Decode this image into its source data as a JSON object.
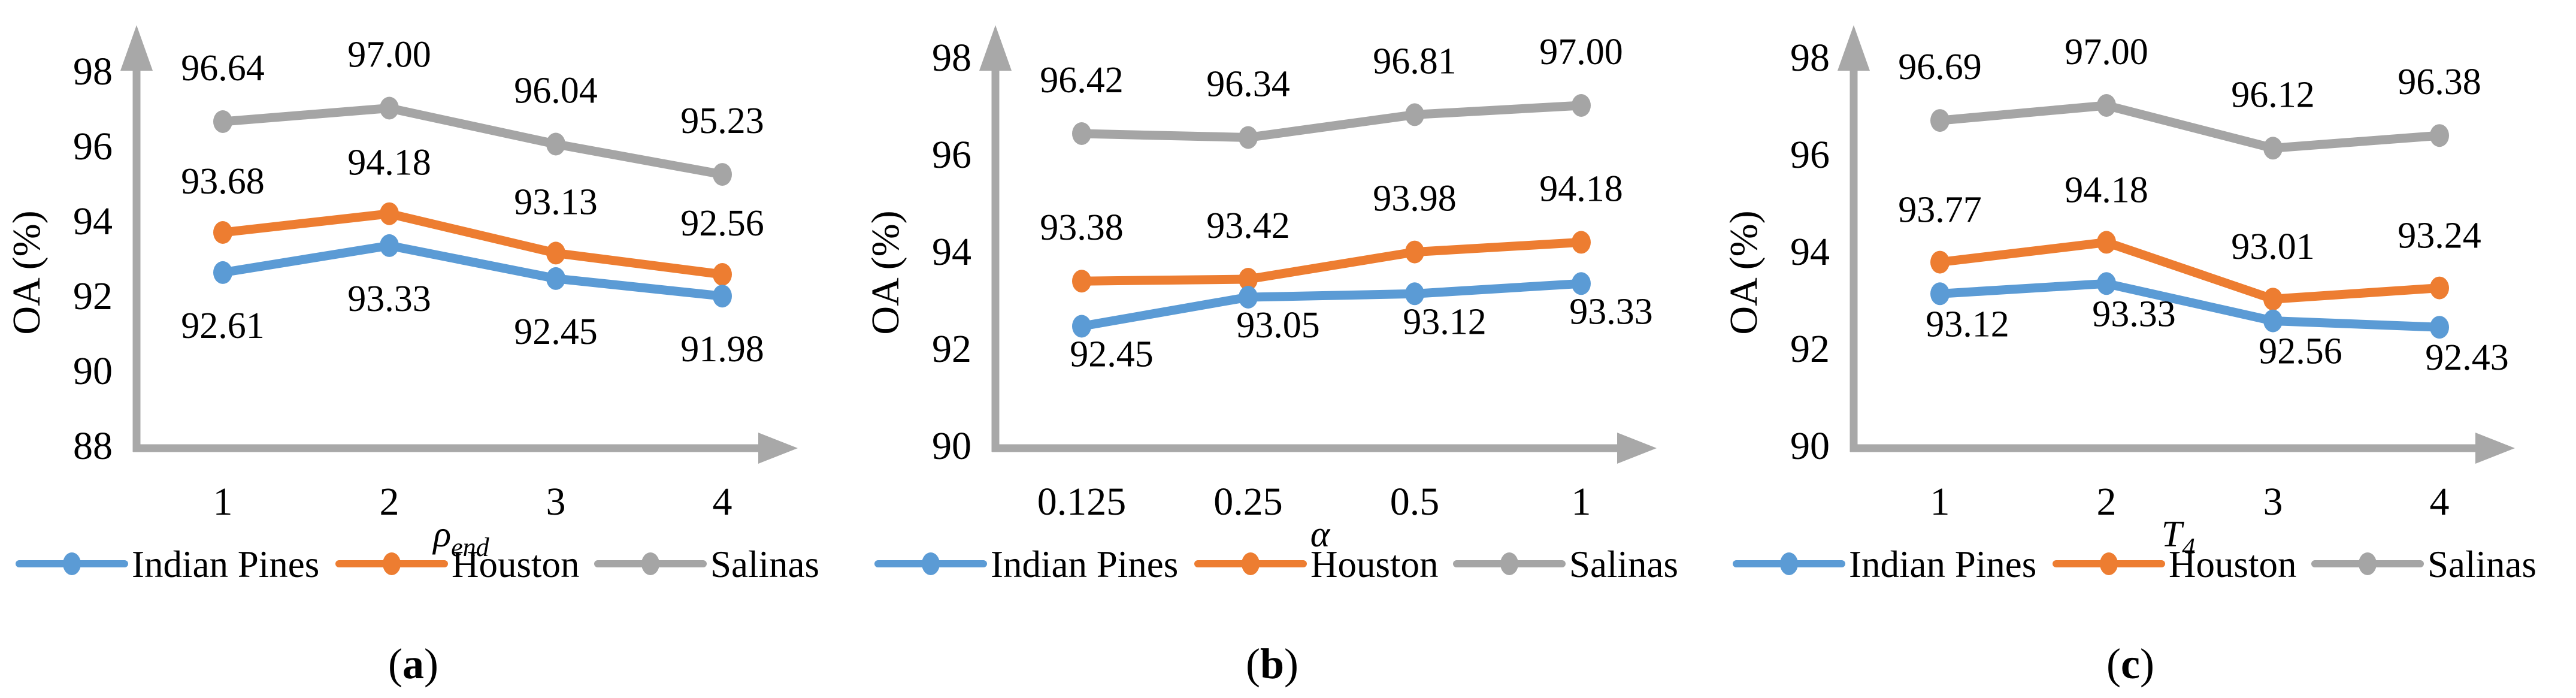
{
  "figure": {
    "colors": {
      "indian_pines": "#5B9BD5",
      "houston": "#ED7D31",
      "salinas": "#A5A5A5",
      "axis": "#A8A8A8",
      "text": "#000000"
    },
    "legend_labels": [
      "Indian Pines",
      "Houston",
      "Salinas"
    ]
  },
  "chart_data": [
    {
      "type": "line",
      "caption": {
        "open": "(",
        "letter": "a",
        "close": ")"
      },
      "ylabel": "OA (%)",
      "xlabel": {
        "main": "ρ",
        "sub": "end"
      },
      "ylim": [
        88,
        98
      ],
      "yticks": [
        "88",
        "90",
        "92",
        "94",
        "96",
        "98"
      ],
      "categories": [
        "1",
        "2",
        "3",
        "4"
      ],
      "grid": false,
      "legend_position": "bottom",
      "series": [
        {
          "name": "Indian Pines",
          "color_key": "indian_pines",
          "values": [
            92.61,
            93.33,
            92.45,
            91.98
          ],
          "labels": [
            "92.61",
            "93.33",
            "92.45",
            "91.98"
          ],
          "label_side": "below",
          "label_dx": 0,
          "label_dy": 88
        },
        {
          "name": "Houston",
          "color_key": "houston",
          "values": [
            93.68,
            94.18,
            93.13,
            92.56
          ],
          "labels": [
            "93.68",
            "94.18",
            "93.13",
            "92.56"
          ],
          "label_side": "above",
          "label_dx": 0,
          "label_dy": -86
        },
        {
          "name": "Salinas",
          "color_key": "salinas",
          "values": [
            96.64,
            97.0,
            96.04,
            95.23
          ],
          "labels": [
            "96.64",
            "97.00",
            "96.04",
            "95.23"
          ],
          "label_side": "above",
          "label_dx": 0,
          "label_dy": -90
        }
      ]
    },
    {
      "type": "line",
      "caption": {
        "open": "(",
        "letter": "b",
        "close": ")"
      },
      "ylabel": "OA (%)",
      "xlabel": {
        "main": "α",
        "sub": ""
      },
      "ylim": [
        90,
        98
      ],
      "yticks": [
        "90",
        "92",
        "94",
        "96",
        "98"
      ],
      "categories": [
        "0.125",
        "0.25",
        "0.5",
        "1"
      ],
      "grid": false,
      "legend_position": "bottom",
      "series": [
        {
          "name": "Indian Pines",
          "color_key": "indian_pines",
          "values": [
            92.45,
            93.05,
            93.12,
            93.33
          ],
          "labels": [
            "92.45",
            "93.05",
            "93.12",
            "93.33"
          ],
          "label_side": "below",
          "label_dx": 50,
          "label_dy": 46
        },
        {
          "name": "Houston",
          "color_key": "houston",
          "values": [
            93.38,
            93.42,
            93.98,
            94.18
          ],
          "labels": [
            "93.38",
            "93.42",
            "93.98",
            "94.18"
          ],
          "label_side": "above",
          "label_dx": 0,
          "label_dy": -90
        },
        {
          "name": "Salinas",
          "color_key": "salinas",
          "values": [
            96.42,
            96.34,
            96.81,
            97.0
          ],
          "labels": [
            "96.42",
            "96.34",
            "96.81",
            "97.00"
          ],
          "label_side": "above",
          "label_dx": 0,
          "label_dy": -90
        }
      ]
    },
    {
      "type": "line",
      "caption": {
        "open": "(",
        "letter": "c",
        "close": ")"
      },
      "ylabel": "OA (%)",
      "xlabel": {
        "main": "T",
        "sub": "4"
      },
      "ylim": [
        90,
        98
      ],
      "yticks": [
        "90",
        "92",
        "94",
        "96",
        "98"
      ],
      "categories": [
        "1",
        "2",
        "3",
        "4"
      ],
      "grid": false,
      "legend_position": "bottom",
      "series": [
        {
          "name": "Indian Pines",
          "color_key": "indian_pines",
          "values": [
            93.12,
            93.33,
            92.56,
            92.43
          ],
          "labels": [
            "93.12",
            "93.33",
            "92.56",
            "92.43"
          ],
          "label_side": "below",
          "label_dx": 46,
          "label_dy": 50
        },
        {
          "name": "Houston",
          "color_key": "houston",
          "values": [
            93.77,
            94.18,
            93.01,
            93.24
          ],
          "labels": [
            "93.77",
            "94.18",
            "93.01",
            "93.24"
          ],
          "label_side": "above",
          "label_dx": 0,
          "label_dy": -88
        },
        {
          "name": "Salinas",
          "color_key": "salinas",
          "values": [
            96.69,
            97.0,
            96.12,
            96.38
          ],
          "labels": [
            "96.69",
            "97.00",
            "96.12",
            "96.38"
          ],
          "label_side": "above",
          "label_dx": 0,
          "label_dy": -90
        }
      ]
    }
  ]
}
